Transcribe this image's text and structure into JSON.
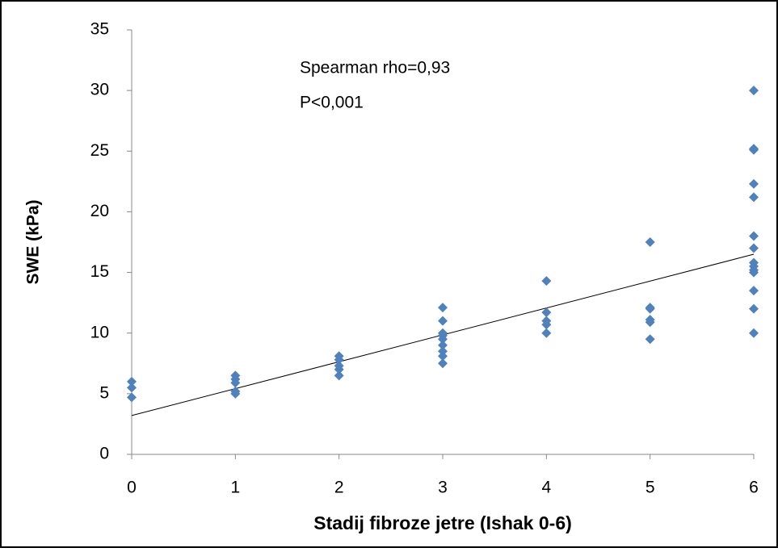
{
  "chart_data": {
    "type": "scatter",
    "x_label": "Stadij fibroze jetre (Ishak 0-6)",
    "y_label": "SWE (kPa)",
    "annotations": [
      "Spearman rho=0,93",
      "P<0,001"
    ],
    "color": "#4f81bd",
    "x": [
      0,
      0,
      0,
      1,
      1,
      1,
      1,
      1,
      2,
      2,
      2,
      2,
      2,
      3,
      3,
      3,
      3,
      3,
      3,
      3,
      3,
      3,
      4,
      4,
      4,
      4,
      4,
      5,
      5,
      5,
      5,
      5,
      5,
      6,
      6,
      6,
      6,
      6,
      6,
      6,
      6,
      6,
      6,
      6,
      6,
      6,
      6
    ],
    "values": [
      6.0,
      5.5,
      4.7,
      6.5,
      6.2,
      5.9,
      5.2,
      5.0,
      8.1,
      7.8,
      7.3,
      7.0,
      6.5,
      12.1,
      11.0,
      10.0,
      9.8,
      9.5,
      9.0,
      8.5,
      8.1,
      7.5,
      14.3,
      11.7,
      11.0,
      10.7,
      10.0,
      17.5,
      12.1,
      12.0,
      11.1,
      10.9,
      9.5,
      30.0,
      25.2,
      25.1,
      22.3,
      21.2,
      18.0,
      17.0,
      15.8,
      15.5,
      15.2,
      15.0,
      13.5,
      12.0,
      10.0
    ],
    "trendline": {
      "x": [
        0,
        6
      ],
      "values": [
        3.2,
        16.5
      ]
    },
    "xlim": [
      0,
      6
    ],
    "xticks": [
      0,
      1,
      2,
      3,
      4,
      5,
      6
    ],
    "ylim": [
      0,
      35
    ],
    "yticks": [
      0,
      5,
      10,
      15,
      20,
      25,
      30,
      35
    ]
  }
}
